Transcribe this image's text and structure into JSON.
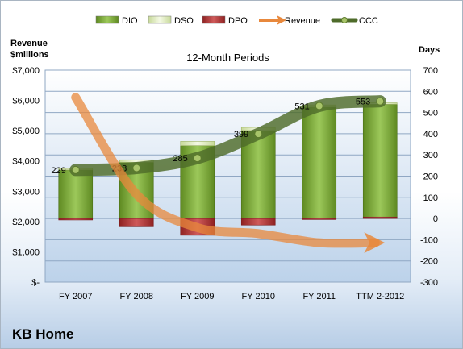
{
  "company": "KB Home",
  "chart_data": {
    "type": "bar",
    "title": "12-Month Periods",
    "y_left_label_lines": [
      "Revenue",
      "$millions"
    ],
    "y_right_label": "Days",
    "categories": [
      "FY 2007",
      "FY 2008",
      "FY 2009",
      "FY 2010",
      "FY 2011",
      "TTM 2-2012"
    ],
    "ylim_left": [
      0,
      7000
    ],
    "ylim_right": [
      -300,
      700
    ],
    "left_ticks": [
      "$-",
      "$1,000",
      "$2,000",
      "$3,000",
      "$4,000",
      "$5,000",
      "$6,000",
      "$7,000"
    ],
    "right_ticks": [
      "-300",
      "-200",
      "-100",
      "0",
      "100",
      "200",
      "300",
      "400",
      "500",
      "600",
      "700"
    ],
    "legend": [
      "DIO",
      "DSO",
      "DPO",
      "Revenue",
      "CCC"
    ],
    "legend_position": "top",
    "series": [
      {
        "name": "DIO",
        "axis": "right",
        "values": [
          229,
          265,
          344,
          415,
          526,
          539
        ],
        "color": "#7aa23a"
      },
      {
        "name": "DSO",
        "axis": "right",
        "values": [
          7,
          12,
          20,
          15,
          10,
          7
        ],
        "color": "#e6f0c4"
      },
      {
        "name": "DPO",
        "axis": "right",
        "values": [
          -7,
          -39,
          -79,
          -31,
          -5,
          7
        ],
        "color": "#b33a3a"
      },
      {
        "name": "Revenue",
        "axis": "left",
        "values": [
          6100,
          2900,
          1800,
          1600,
          1300,
          1300
        ],
        "color": "#e8883c"
      },
      {
        "name": "CCC",
        "axis": "right",
        "values": [
          229,
          238,
          285,
          399,
          531,
          553
        ],
        "color": "#4e6b2a",
        "labels": [
          "229",
          "238",
          "285",
          "399",
          "531",
          "553"
        ]
      }
    ]
  }
}
